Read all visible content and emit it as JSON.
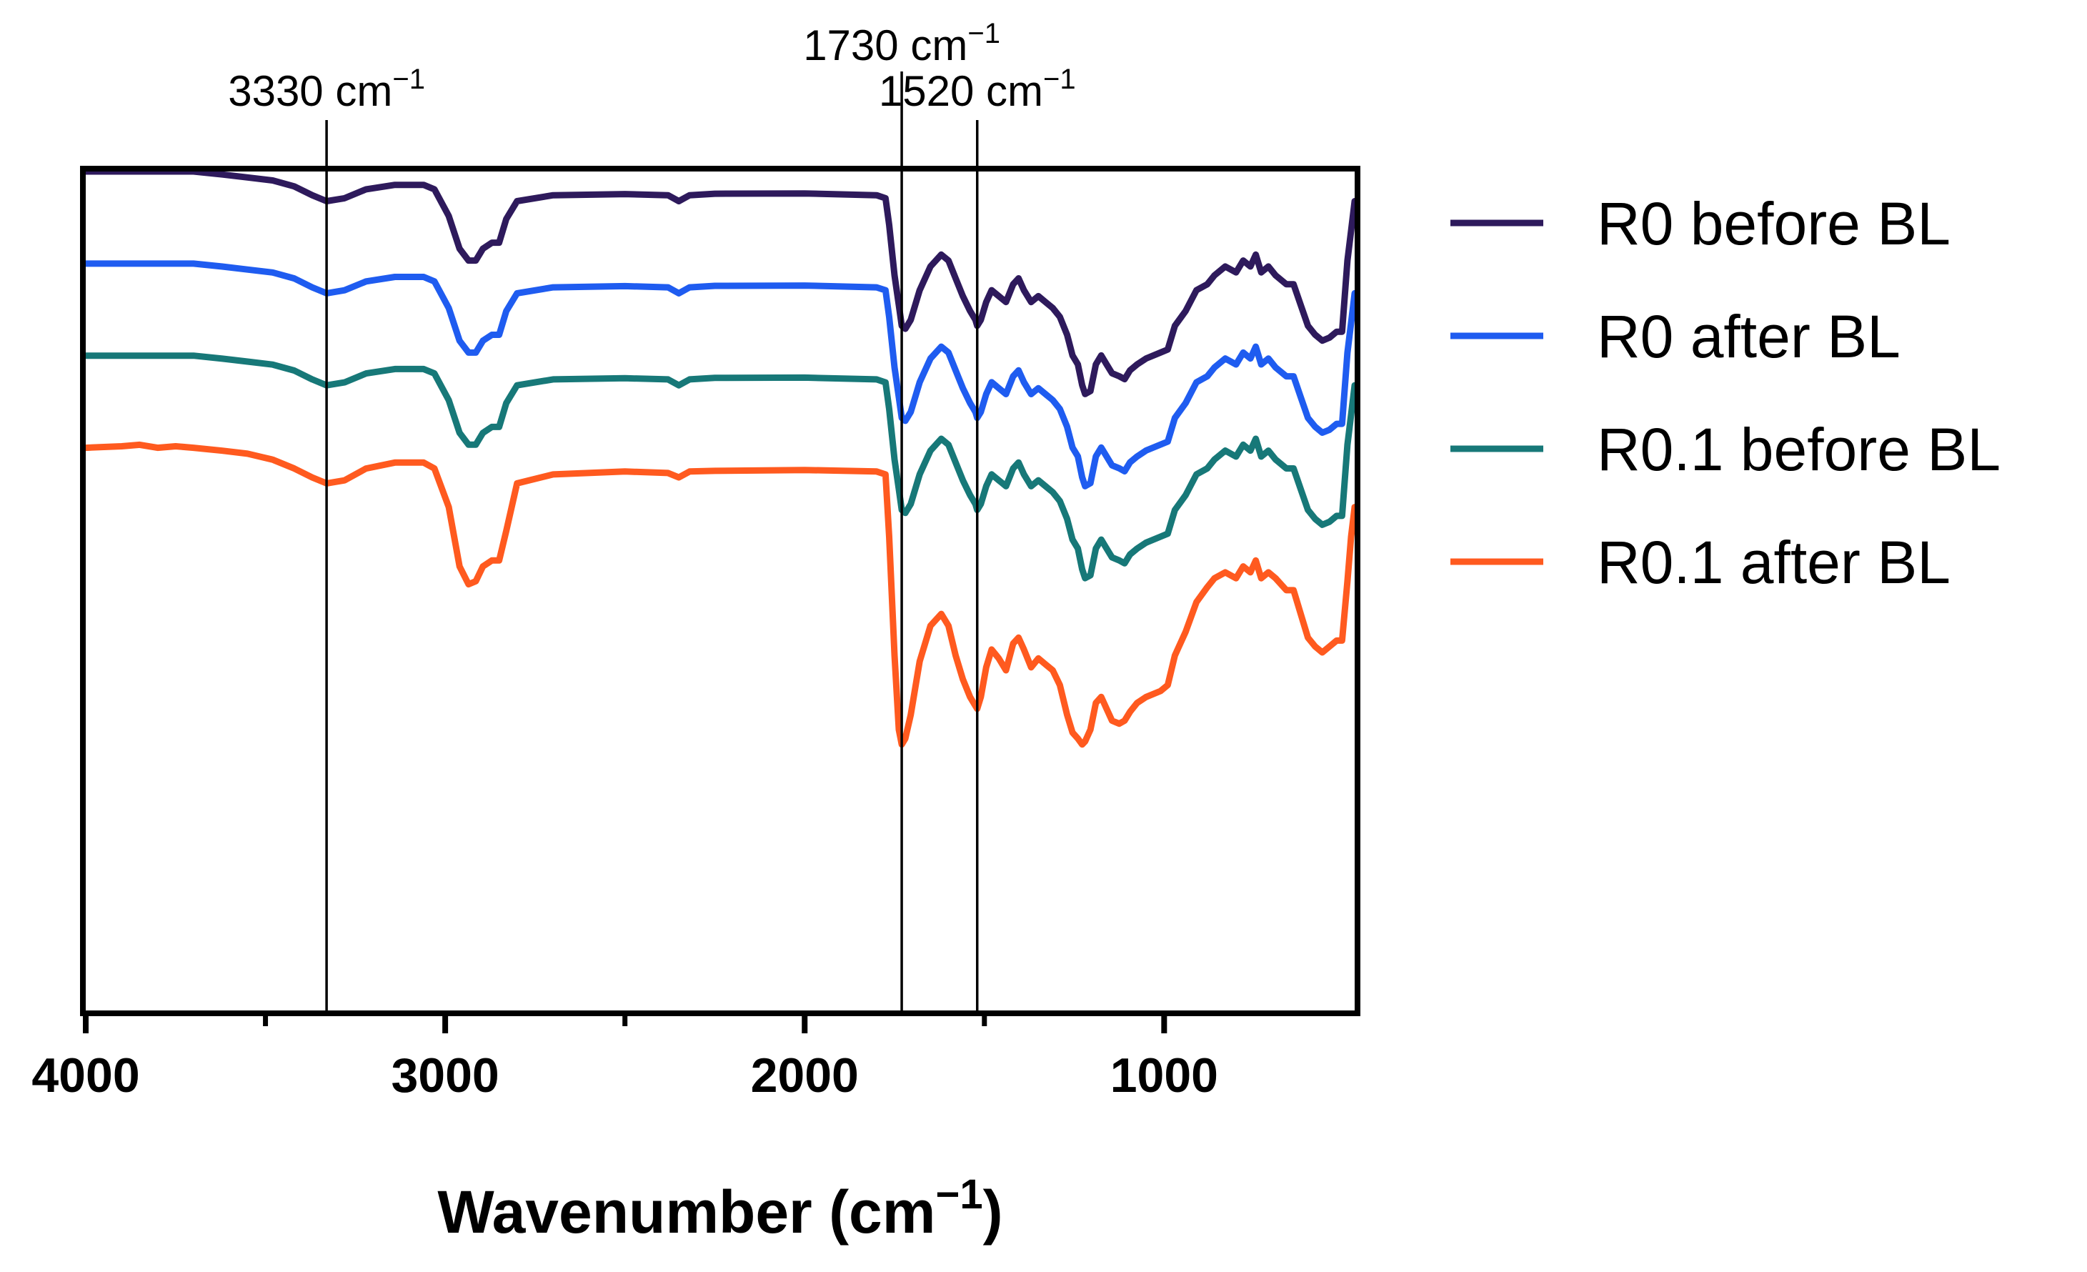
{
  "chart_data": {
    "type": "line",
    "title": "",
    "xlabel": "Wavenumber (cm⁻¹)",
    "xlabel_base": "Wavenumber (cm",
    "xlabel_sup": "−1",
    "xlabel_close": ")",
    "ylabel": "",
    "xlim": [
      4000,
      470
    ],
    "x_reversed": true,
    "grid": false,
    "legend_position": "right",
    "x_ticks_major": [
      4000,
      3000,
      2000,
      1000
    ],
    "x_tick_labels": [
      "4000",
      "3000",
      "2000",
      "1000"
    ],
    "x_ticks_minor": [
      3500,
      2500,
      1500
    ],
    "annotations": [
      {
        "x": 3330,
        "label": "3330 cm⁻¹",
        "base": "3330 cm",
        "sup": "−1"
      },
      {
        "x": 1730,
        "label": "1730 cm⁻¹",
        "base": "1730 cm",
        "sup": "−1"
      },
      {
        "x": 1520,
        "label": "1520 cm⁻¹",
        "base": "1520 cm",
        "sup": "−1"
      }
    ],
    "y_units": "relative transmittance (offset, arbitrary units)",
    "series": [
      {
        "name": "R0 before BL",
        "color": "#2e1a5c",
        "offset": 0,
        "shape_scale": 1.0
      },
      {
        "name": "R0 after BL",
        "color": "#1f5cf0",
        "offset": -18,
        "shape_scale": 1.0
      },
      {
        "name": "R0.1 before BL",
        "color": "#177878",
        "offset": -36,
        "shape_scale": 1.0
      },
      {
        "name": "R0.1 after BL",
        "color": "#ff5a1f",
        "offset": -54,
        "shape_scale": 1.0
      }
    ],
    "profiles": {
      "R0 before BL": {
        "x": [
          4000,
          3700,
          3620,
          3550,
          3480,
          3420,
          3370,
          3330,
          3280,
          3220,
          3140,
          3060,
          3030,
          2990,
          2960,
          2935,
          2915,
          2895,
          2870,
          2850,
          2830,
          2800,
          2700,
          2500,
          2380,
          2350,
          2320,
          2250,
          2000,
          1800,
          1775,
          1765,
          1750,
          1738,
          1730,
          1720,
          1705,
          1680,
          1650,
          1620,
          1600,
          1580,
          1560,
          1540,
          1525,
          1520,
          1510,
          1495,
          1480,
          1460,
          1440,
          1420,
          1405,
          1390,
          1370,
          1350,
          1330,
          1310,
          1290,
          1270,
          1255,
          1240,
          1228,
          1220,
          1205,
          1190,
          1175,
          1160,
          1145,
          1125,
          1110,
          1095,
          1075,
          1050,
          1010,
          990,
          970,
          940,
          910,
          880,
          860,
          830,
          800,
          780,
          760,
          745,
          730,
          710,
          690,
          660,
          640,
          620,
          600,
          580,
          560,
          540,
          520,
          505,
          490,
          480,
          470
        ],
        "y": [
          100,
          100,
          99,
          98,
          97,
          95,
          92,
          90,
          91,
          94,
          95.5,
          95.5,
          94,
          85,
          74,
          70,
          70,
          74,
          76,
          76,
          84,
          90,
          92,
          92.4,
          92,
          90,
          92,
          92.5,
          92.6,
          92,
          91,
          82,
          65,
          55,
          48,
          47,
          50,
          60,
          68,
          72,
          70,
          64,
          58,
          53,
          50,
          48,
          50,
          56,
          60,
          58,
          56,
          62,
          64,
          60,
          56,
          58,
          56,
          54,
          51,
          45,
          38,
          35,
          28,
          25,
          26,
          35,
          38,
          35,
          32,
          31,
          30,
          33,
          35,
          37,
          39,
          40,
          48,
          53,
          60,
          62,
          65,
          68,
          66,
          70,
          68,
          72,
          66,
          68,
          65,
          62,
          62,
          55,
          48,
          45,
          43,
          44,
          46,
          46,
          70,
          80,
          90
        ]
      },
      "R0 after BL": {
        "x": [
          4000,
          3700,
          3620,
          3550,
          3480,
          3420,
          3370,
          3330,
          3280,
          3220,
          3140,
          3060,
          3030,
          2990,
          2960,
          2935,
          2915,
          2895,
          2870,
          2850,
          2830,
          2800,
          2700,
          2500,
          2380,
          2350,
          2320,
          2250,
          2000,
          1800,
          1775,
          1765,
          1750,
          1738,
          1730,
          1720,
          1705,
          1680,
          1650,
          1620,
          1600,
          1580,
          1560,
          1540,
          1525,
          1520,
          1510,
          1495,
          1480,
          1460,
          1440,
          1420,
          1405,
          1390,
          1370,
          1350,
          1330,
          1310,
          1290,
          1270,
          1255,
          1240,
          1228,
          1220,
          1205,
          1190,
          1175,
          1160,
          1145,
          1125,
          1110,
          1095,
          1075,
          1050,
          1010,
          990,
          970,
          940,
          910,
          880,
          860,
          830,
          800,
          780,
          760,
          745,
          730,
          710,
          690,
          660,
          640,
          620,
          600,
          580,
          560,
          540,
          520,
          505,
          490,
          480,
          470
        ],
        "y": [
          100,
          100,
          99,
          98,
          97,
          95,
          92,
          90,
          91,
          94,
          95.5,
          95.5,
          94,
          85,
          74,
          70,
          70,
          74,
          76,
          76,
          84,
          90,
          92,
          92.4,
          92,
          90,
          92,
          92.5,
          92.6,
          92,
          91,
          82,
          65,
          55,
          48,
          47,
          50,
          60,
          68,
          72,
          70,
          64,
          58,
          53,
          50,
          48,
          50,
          56,
          60,
          58,
          56,
          62,
          64,
          60,
          56,
          58,
          56,
          54,
          51,
          45,
          38,
          35,
          28,
          25,
          26,
          35,
          38,
          35,
          32,
          31,
          30,
          33,
          35,
          37,
          39,
          40,
          48,
          53,
          60,
          62,
          65,
          68,
          66,
          70,
          68,
          72,
          66,
          68,
          65,
          62,
          62,
          55,
          48,
          45,
          43,
          44,
          46,
          46,
          70,
          80,
          90
        ]
      },
      "R0.1 before BL": {
        "x": [
          4000,
          3700,
          3620,
          3550,
          3480,
          3420,
          3370,
          3330,
          3280,
          3220,
          3140,
          3060,
          3030,
          2990,
          2960,
          2935,
          2915,
          2895,
          2870,
          2850,
          2830,
          2800,
          2700,
          2500,
          2380,
          2350,
          2320,
          2250,
          2000,
          1800,
          1775,
          1765,
          1750,
          1738,
          1730,
          1720,
          1705,
          1680,
          1650,
          1620,
          1600,
          1580,
          1560,
          1540,
          1525,
          1520,
          1510,
          1495,
          1480,
          1460,
          1440,
          1420,
          1405,
          1390,
          1370,
          1350,
          1330,
          1310,
          1290,
          1270,
          1255,
          1240,
          1228,
          1220,
          1205,
          1190,
          1175,
          1160,
          1145,
          1125,
          1110,
          1095,
          1075,
          1050,
          1010,
          990,
          970,
          940,
          910,
          880,
          860,
          830,
          800,
          780,
          760,
          745,
          730,
          710,
          690,
          660,
          640,
          620,
          600,
          580,
          560,
          540,
          520,
          505,
          490,
          480,
          470
        ],
        "y": [
          100,
          100,
          99,
          98,
          97,
          95,
          92,
          90,
          91,
          94,
          95.5,
          95.5,
          94,
          85,
          74,
          70,
          70,
          74,
          76,
          76,
          84,
          90,
          92,
          92.4,
          92,
          90,
          92,
          92.5,
          92.6,
          92,
          91,
          82,
          65,
          55,
          48,
          47,
          50,
          60,
          68,
          72,
          70,
          64,
          58,
          53,
          50,
          48,
          50,
          56,
          60,
          58,
          56,
          62,
          64,
          60,
          56,
          58,
          56,
          54,
          51,
          45,
          38,
          35,
          28,
          25,
          26,
          35,
          38,
          35,
          32,
          31,
          30,
          33,
          35,
          37,
          39,
          40,
          48,
          53,
          60,
          62,
          65,
          68,
          66,
          70,
          68,
          72,
          66,
          68,
          65,
          62,
          62,
          55,
          48,
          45,
          43,
          44,
          46,
          46,
          70,
          80,
          90
        ]
      },
      "R0.1 after BL": {
        "x": [
          4000,
          3900,
          3850,
          3800,
          3750,
          3700,
          3620,
          3550,
          3480,
          3420,
          3370,
          3330,
          3280,
          3220,
          3140,
          3060,
          3030,
          2990,
          2960,
          2935,
          2915,
          2895,
          2870,
          2850,
          2830,
          2800,
          2700,
          2500,
          2380,
          2350,
          2320,
          2250,
          2000,
          1800,
          1775,
          1765,
          1750,
          1738,
          1730,
          1720,
          1705,
          1680,
          1650,
          1620,
          1600,
          1580,
          1560,
          1540,
          1525,
          1520,
          1510,
          1495,
          1480,
          1460,
          1440,
          1420,
          1405,
          1390,
          1370,
          1350,
          1330,
          1310,
          1290,
          1270,
          1255,
          1240,
          1228,
          1220,
          1205,
          1190,
          1175,
          1160,
          1145,
          1125,
          1110,
          1095,
          1075,
          1050,
          1010,
          990,
          970,
          940,
          910,
          880,
          860,
          830,
          800,
          780,
          760,
          745,
          730,
          710,
          690,
          660,
          640,
          620,
          600,
          580,
          560,
          540,
          520,
          505,
          490,
          480,
          470
        ],
        "y": [
          100,
          100.5,
          101,
          100,
          100.5,
          100,
          99,
          98,
          96,
          93,
          90,
          88,
          89,
          93,
          95,
          95,
          93,
          80,
          60,
          54,
          55,
          60,
          62,
          62,
          72,
          88,
          91,
          92,
          91.5,
          90,
          92,
          92.2,
          92.5,
          92,
          91,
          70,
          30,
          5,
          0,
          2,
          10,
          28,
          40,
          44,
          40,
          30,
          22,
          16,
          13,
          12,
          16,
          26,
          32,
          29,
          25,
          34,
          36,
          32,
          26,
          29,
          27,
          25,
          20,
          10,
          4,
          2,
          0,
          1,
          5,
          14,
          16,
          12,
          8,
          7,
          8,
          11,
          14,
          16,
          18,
          20,
          30,
          38,
          48,
          53,
          56,
          58,
          56,
          60,
          58,
          62,
          56,
          58,
          56,
          52,
          52,
          44,
          36,
          33,
          31,
          33,
          35,
          35,
          55,
          70,
          80
        ]
      }
    }
  },
  "legend": {
    "items": [
      {
        "label": "R0 before BL",
        "color": "#2e1a5c"
      },
      {
        "label": "R0 after BL",
        "color": "#1f5cf0"
      },
      {
        "label": "R0.1 before BL",
        "color": "#177878"
      },
      {
        "label": "R0.1 after BL",
        "color": "#ff5a1f"
      }
    ]
  }
}
